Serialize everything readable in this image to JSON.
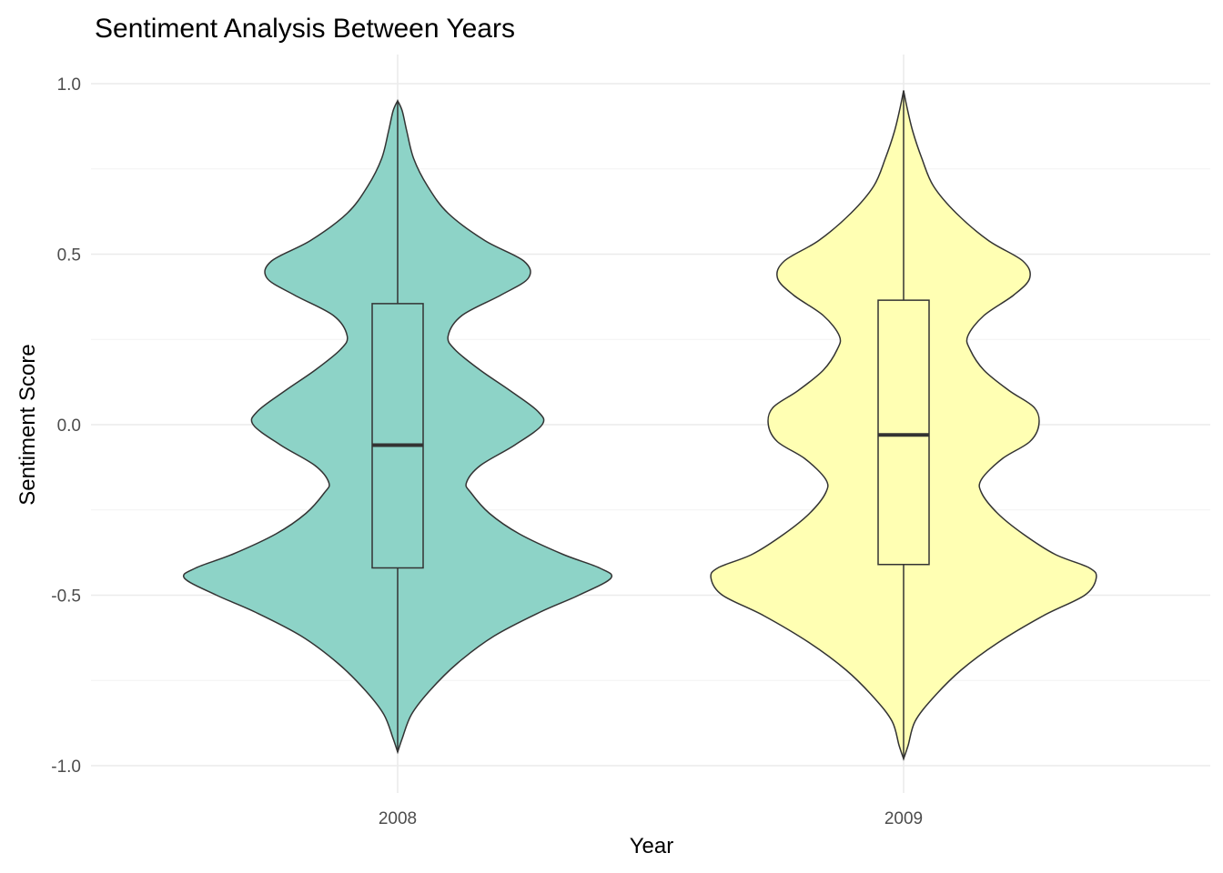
{
  "chart_data": {
    "type": "violin",
    "title": "Sentiment Analysis Between Years",
    "xlabel": "Year",
    "ylabel": "Sentiment Score",
    "ylim": [
      -1.07,
      1.07
    ],
    "yticks": [
      -1.0,
      -0.5,
      0.0,
      0.5,
      1.0
    ],
    "ytick_labels": [
      "-1.0",
      "-0.5",
      "0.0",
      "0.5",
      "1.0"
    ],
    "categories": [
      "2008",
      "2009"
    ],
    "grid": true,
    "legend": "none",
    "series": [
      {
        "category": "2008",
        "color": "#8dd3c7",
        "range": [
          -0.96,
          0.95
        ],
        "density": [
          [
            -0.96,
            0.0
          ],
          [
            -0.92,
            0.02
          ],
          [
            -0.85,
            0.06
          ],
          [
            -0.78,
            0.14
          ],
          [
            -0.7,
            0.26
          ],
          [
            -0.62,
            0.42
          ],
          [
            -0.55,
            0.62
          ],
          [
            -0.5,
            0.79
          ],
          [
            -0.45,
            0.93
          ],
          [
            -0.42,
            0.88
          ],
          [
            -0.38,
            0.72
          ],
          [
            -0.32,
            0.53
          ],
          [
            -0.26,
            0.4
          ],
          [
            -0.2,
            0.32
          ],
          [
            -0.17,
            0.3
          ],
          [
            -0.12,
            0.36
          ],
          [
            -0.06,
            0.51
          ],
          [
            0.0,
            0.63
          ],
          [
            0.04,
            0.61
          ],
          [
            0.1,
            0.49
          ],
          [
            0.16,
            0.36
          ],
          [
            0.22,
            0.25
          ],
          [
            0.26,
            0.22
          ],
          [
            0.32,
            0.28
          ],
          [
            0.38,
            0.45
          ],
          [
            0.43,
            0.57
          ],
          [
            0.48,
            0.55
          ],
          [
            0.54,
            0.38
          ],
          [
            0.62,
            0.22
          ],
          [
            0.7,
            0.13
          ],
          [
            0.78,
            0.07
          ],
          [
            0.86,
            0.04
          ],
          [
            0.92,
            0.02
          ],
          [
            0.95,
            0.0
          ]
        ],
        "box": {
          "q1": -0.42,
          "median": -0.06,
          "q3": 0.355,
          "whisker_low": -0.96,
          "whisker_high": 0.95
        }
      },
      {
        "category": "2009",
        "color": "#ffffb3",
        "range": [
          -0.98,
          0.98
        ],
        "density": [
          [
            -0.98,
            0.0
          ],
          [
            -0.94,
            0.02
          ],
          [
            -0.87,
            0.05
          ],
          [
            -0.8,
            0.13
          ],
          [
            -0.72,
            0.25
          ],
          [
            -0.64,
            0.41
          ],
          [
            -0.56,
            0.61
          ],
          [
            -0.5,
            0.79
          ],
          [
            -0.45,
            0.84
          ],
          [
            -0.42,
            0.81
          ],
          [
            -0.38,
            0.66
          ],
          [
            -0.32,
            0.52
          ],
          [
            -0.26,
            0.41
          ],
          [
            -0.2,
            0.34
          ],
          [
            -0.16,
            0.34
          ],
          [
            -0.1,
            0.43
          ],
          [
            -0.05,
            0.55
          ],
          [
            0.0,
            0.59
          ],
          [
            0.05,
            0.57
          ],
          [
            0.1,
            0.46
          ],
          [
            0.16,
            0.35
          ],
          [
            0.22,
            0.29
          ],
          [
            0.26,
            0.28
          ],
          [
            0.32,
            0.35
          ],
          [
            0.38,
            0.48
          ],
          [
            0.43,
            0.55
          ],
          [
            0.48,
            0.52
          ],
          [
            0.54,
            0.37
          ],
          [
            0.62,
            0.23
          ],
          [
            0.7,
            0.13
          ],
          [
            0.78,
            0.08
          ],
          [
            0.86,
            0.04
          ],
          [
            0.93,
            0.015
          ],
          [
            0.98,
            0.0
          ]
        ],
        "box": {
          "q1": -0.41,
          "median": -0.03,
          "q3": 0.365,
          "whisker_low": -0.98,
          "whisker_high": 0.98
        }
      }
    ]
  }
}
